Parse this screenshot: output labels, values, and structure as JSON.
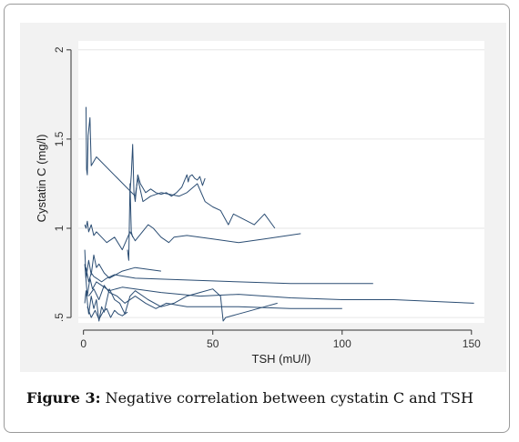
{
  "caption": {
    "label": "Figure 3:",
    "text": "Negative correlation between cystatin C and TSH"
  },
  "chart_data": {
    "type": "line",
    "xlabel": "TSH (mU/l)",
    "ylabel": "Cystatin C (mg/l)",
    "xlim": [
      -2,
      155
    ],
    "ylim": [
      0.47,
      2.05
    ],
    "xticks": [
      0,
      50,
      100,
      150
    ],
    "yticks": [
      0.5,
      1,
      1.5,
      2
    ],
    "ytick_labels": [
      ".5",
      "1",
      "1.5",
      "2"
    ],
    "grid": true,
    "line_color": "#2b4d73",
    "series": [
      {
        "x": [
          1.0,
          1.2,
          1.5,
          1.8,
          2.5,
          3.0,
          5.0,
          20.0,
          21.0,
          23.0,
          26.0,
          30.0,
          37.0,
          40.0,
          44.0,
          47.0,
          50.0,
          53.0,
          56.0,
          58.0,
          62.0,
          66.0,
          70.0,
          74.0
        ],
        "y": [
          1.68,
          1.33,
          1.3,
          1.52,
          1.62,
          1.35,
          1.4,
          1.18,
          1.28,
          1.15,
          1.18,
          1.2,
          1.18,
          1.2,
          1.25,
          1.15,
          1.12,
          1.1,
          1.02,
          1.08,
          1.05,
          1.02,
          1.08,
          1.0
        ]
      },
      {
        "x": [
          18.0,
          18.5,
          19.0,
          19.5,
          20.0,
          21.0,
          22.0,
          24.0,
          26.0,
          28.0,
          30.0,
          32.0,
          34.0,
          36.0,
          38.0,
          40.0,
          40.5,
          41.0,
          42.0,
          43.0,
          44.0,
          45.0,
          46.0,
          47.0
        ],
        "y": [
          1.2,
          1.3,
          1.47,
          1.2,
          1.15,
          1.3,
          1.25,
          1.2,
          1.22,
          1.2,
          1.19,
          1.2,
          1.18,
          1.2,
          1.23,
          1.3,
          1.26,
          1.29,
          1.3,
          1.28,
          1.27,
          1.29,
          1.24,
          1.28
        ]
      },
      {
        "x": [
          0.5,
          1.0,
          1.5,
          2.0,
          3.0,
          4.0,
          5.0,
          7.0,
          9.0,
          12.0,
          15.0,
          18.0,
          20.0,
          25.0,
          27.0,
          30.0,
          33.0,
          35.0,
          40.0,
          50.0,
          60.0,
          70.0,
          84.0
        ],
        "y": [
          1.02,
          1.0,
          1.04,
          0.98,
          1.02,
          0.96,
          0.98,
          0.95,
          0.92,
          0.95,
          0.88,
          0.98,
          0.93,
          1.02,
          1.0,
          0.95,
          0.92,
          0.95,
          0.96,
          0.94,
          0.92,
          0.94,
          0.97
        ]
      },
      {
        "x": [
          17.0,
          17.5,
          18.0,
          18.5,
          19.0
        ],
        "y": [
          0.88,
          0.82,
          1.25,
          0.98,
          0.95
        ]
      },
      {
        "x": [
          0.5,
          1.0,
          2.0,
          3.0,
          4.0,
          5.0,
          6.0,
          8.0,
          10.0,
          15.0,
          20.0,
          30.0
        ],
        "y": [
          0.88,
          0.72,
          0.82,
          0.74,
          0.85,
          0.78,
          0.8,
          0.75,
          0.72,
          0.76,
          0.78,
          0.76
        ]
      },
      {
        "x": [
          1.0,
          2.0,
          3.0,
          4.0,
          5.0,
          7.0,
          9.0,
          12.0,
          20.0,
          40.0,
          60.0,
          80.0,
          112.0
        ],
        "y": [
          0.78,
          0.7,
          0.75,
          0.73,
          0.72,
          0.7,
          0.72,
          0.74,
          0.72,
          0.71,
          0.7,
          0.69,
          0.69
        ]
      },
      {
        "x": [
          0.5,
          1.5,
          2.5,
          3.5,
          5.0,
          7.0,
          10.0,
          15.0,
          20.0,
          30.0,
          45.0,
          60.0,
          80.0,
          100.0,
          120.0,
          151.0
        ],
        "y": [
          0.8,
          0.62,
          0.72,
          0.66,
          0.7,
          0.68,
          0.65,
          0.67,
          0.66,
          0.64,
          0.62,
          0.63,
          0.61,
          0.6,
          0.6,
          0.58
        ]
      },
      {
        "x": [
          0.5,
          1.0,
          2.0,
          3.0,
          4.0,
          5.0,
          6.0,
          7.0,
          8.0,
          10.0,
          12.0,
          14.0,
          16.0,
          18.0,
          20.0,
          25.0,
          30.0,
          35.0,
          40.0,
          45.0,
          50.0,
          53.0,
          54.0,
          55.0,
          60.0,
          65.0,
          70.0,
          75.0
        ],
        "y": [
          0.58,
          0.65,
          0.52,
          0.62,
          0.55,
          0.6,
          0.48,
          0.56,
          0.53,
          0.66,
          0.6,
          0.58,
          0.52,
          0.62,
          0.65,
          0.6,
          0.56,
          0.58,
          0.62,
          0.64,
          0.66,
          0.62,
          0.48,
          0.5,
          0.52,
          0.54,
          0.56,
          0.58
        ]
      },
      {
        "x": [
          2.0,
          4.0,
          6.0,
          8.0,
          10.0,
          13.0,
          16.0,
          20.0,
          24.0,
          28.0,
          32.0,
          40.0,
          60.0,
          80.0,
          100.0
        ],
        "y": [
          0.62,
          0.66,
          0.6,
          0.68,
          0.64,
          0.62,
          0.58,
          0.62,
          0.58,
          0.55,
          0.58,
          0.56,
          0.56,
          0.55,
          0.55
        ]
      },
      {
        "x": [
          1.5,
          3.0,
          4.5,
          6.0,
          7.5,
          9.0,
          10.5,
          12.0,
          13.5,
          15.0,
          17.0
        ],
        "y": [
          0.56,
          0.5,
          0.54,
          0.49,
          0.53,
          0.55,
          0.5,
          0.54,
          0.52,
          0.51,
          0.53
        ]
      }
    ]
  }
}
